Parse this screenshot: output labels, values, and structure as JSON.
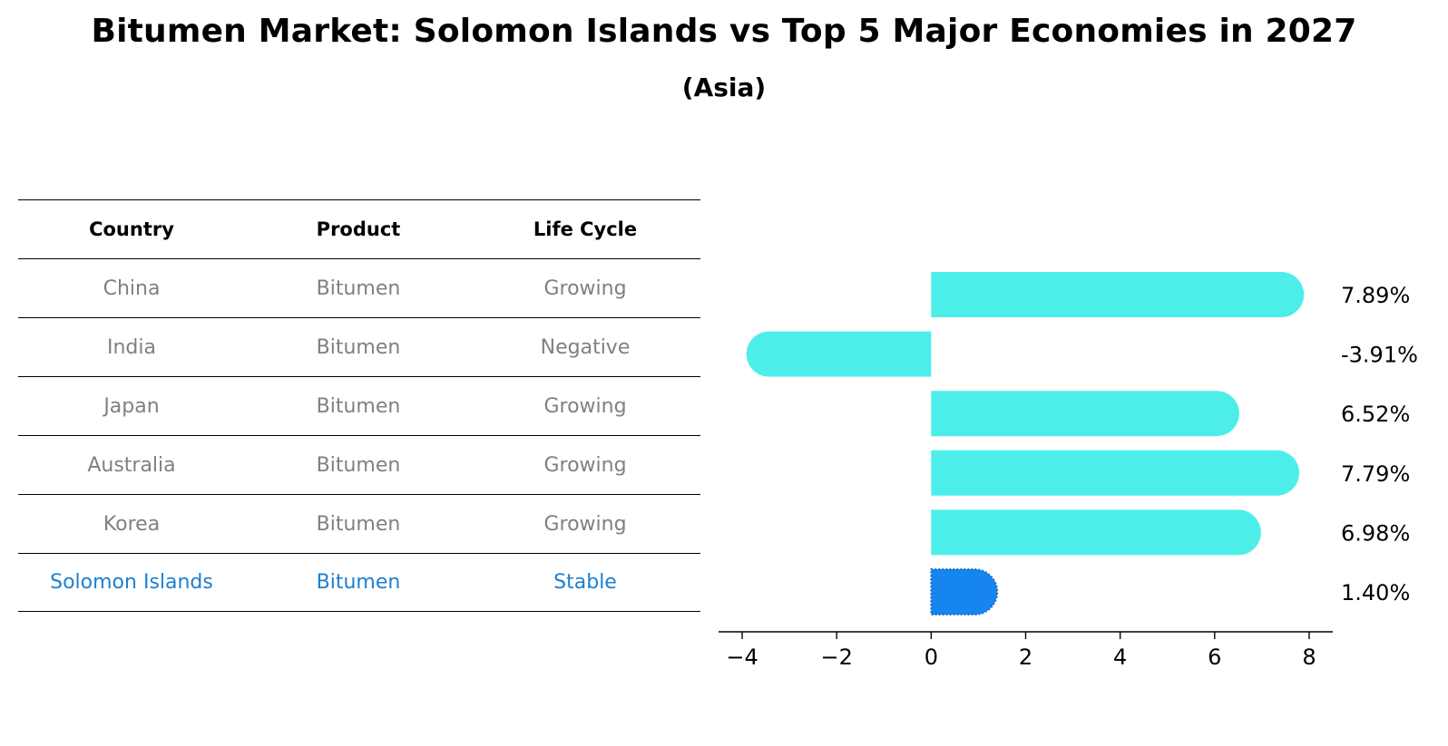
{
  "header": {
    "title": "Bitumen Market: Solomon Islands vs Top 5 Major Economies in 2027",
    "subtitle": "(Asia)"
  },
  "table": {
    "columns": [
      "Country",
      "Product",
      "Life Cycle"
    ],
    "rows": [
      {
        "country": "China",
        "product": "Bitumen",
        "life_cycle": "Growing"
      },
      {
        "country": "India",
        "product": "Bitumen",
        "life_cycle": "Negative"
      },
      {
        "country": "Japan",
        "product": "Bitumen",
        "life_cycle": "Growing"
      },
      {
        "country": "Australia",
        "product": "Bitumen",
        "life_cycle": "Growing"
      },
      {
        "country": "Korea",
        "product": "Bitumen",
        "life_cycle": "Growing"
      },
      {
        "country": "Solomon Islands",
        "product": "Bitumen",
        "life_cycle": "Stable"
      }
    ]
  },
  "colors": {
    "bar": "#4deeea",
    "highlight_bar": "#1785f0",
    "highlight_text": "#1e7fd0",
    "muted_text": "#808080"
  },
  "chart_data": {
    "type": "bar",
    "orientation": "horizontal",
    "categories": [
      "China",
      "India",
      "Japan",
      "Australia",
      "Korea",
      "Solomon Islands"
    ],
    "values": [
      7.89,
      -3.91,
      6.52,
      7.79,
      6.98,
      1.4
    ],
    "labels": [
      "7.89%",
      "-3.91%",
      "6.52%",
      "7.79%",
      "6.98%",
      "1.40%"
    ],
    "highlight_index": 5,
    "xlim": [
      -4.5,
      8.5
    ],
    "xticks": [
      -4,
      -2,
      0,
      2,
      4,
      6,
      8
    ],
    "xtick_labels": [
      "−4",
      "−2",
      "0",
      "2",
      "4",
      "6",
      "8"
    ],
    "grid": false
  }
}
